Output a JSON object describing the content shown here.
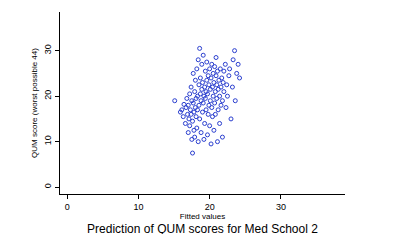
{
  "chart_data": {
    "type": "scatter",
    "title": "Prediction of QUM scores for Med School 2",
    "x_label": "Fitted values",
    "y_label": "QUM score (worst possible 44)",
    "color": "#2b3fcf",
    "marker": "circle-open",
    "grid": false,
    "xlim": [
      -1,
      39
    ],
    "ylim": [
      -1.5,
      38.5
    ],
    "xticks": [
      0,
      10,
      20,
      30
    ],
    "yticks": [
      0,
      10,
      20,
      30
    ],
    "x": [
      15.1,
      15.9,
      16.1,
      16.3,
      16.4,
      16.6,
      16.7,
      16.8,
      16.9,
      17.0,
      17.0,
      17.1,
      17.2,
      17.2,
      17.3,
      17.4,
      17.4,
      17.5,
      17.5,
      17.6,
      17.6,
      17.7,
      17.7,
      17.8,
      17.8,
      17.9,
      17.9,
      18.0,
      18.0,
      18.1,
      18.1,
      18.2,
      18.2,
      18.3,
      18.3,
      18.4,
      18.4,
      18.5,
      18.5,
      18.6,
      18.6,
      18.7,
      18.7,
      18.8,
      18.8,
      18.9,
      18.9,
      19.0,
      19.0,
      19.1,
      19.1,
      19.2,
      19.2,
      19.3,
      19.3,
      19.4,
      19.4,
      19.5,
      19.5,
      19.6,
      19.6,
      19.7,
      19.7,
      19.8,
      19.8,
      19.9,
      19.9,
      20.0,
      20.0,
      20.1,
      20.1,
      20.2,
      20.2,
      20.3,
      20.3,
      20.4,
      20.4,
      20.5,
      20.5,
      20.6,
      20.6,
      20.7,
      20.7,
      20.8,
      20.8,
      20.9,
      20.9,
      21.0,
      21.0,
      21.1,
      21.1,
      21.2,
      21.2,
      21.3,
      21.4,
      21.4,
      21.5,
      21.6,
      21.6,
      21.7,
      21.8,
      21.8,
      21.9,
      22.0,
      22.0,
      22.2,
      22.3,
      22.4,
      22.5,
      22.7,
      22.8,
      23.0,
      23.2,
      23.3,
      23.5,
      23.6,
      23.8,
      24.0,
      24.2
    ],
    "values": [
      19.0,
      16.5,
      17.0,
      15.5,
      18.2,
      14.0,
      17.5,
      19.5,
      16.0,
      12.0,
      18.0,
      15.0,
      20.5,
      13.5,
      17.0,
      22.0,
      16.0,
      10.5,
      19.0,
      7.5,
      14.5,
      18.5,
      25.0,
      12.5,
      16.5,
      21.0,
      11.0,
      17.5,
      23.5,
      15.5,
      19.5,
      26.0,
      13.0,
      20.0,
      17.0,
      28.0,
      10.0,
      22.5,
      18.0,
      30.5,
      15.0,
      24.0,
      20.5,
      12.0,
      19.0,
      21.5,
      27.0,
      16.5,
      23.0,
      18.5,
      29.0,
      20.0,
      10.5,
      22.0,
      14.0,
      25.5,
      19.5,
      17.0,
      21.0,
      27.5,
      23.5,
      11.5,
      20.5,
      24.5,
      16.0,
      22.5,
      18.0,
      26.0,
      13.5,
      21.5,
      19.0,
      24.0,
      9.5,
      27.0,
      17.5,
      22.0,
      15.5,
      25.0,
      20.0,
      23.0,
      12.5,
      26.5,
      18.5,
      21.0,
      16.0,
      24.5,
      28.5,
      19.5,
      22.5,
      10.0,
      25.5,
      17.0,
      21.5,
      23.5,
      14.0,
      20.0,
      26.0,
      18.0,
      22.0,
      24.0,
      19.0,
      11.0,
      23.0,
      25.5,
      21.0,
      27.0,
      17.5,
      22.5,
      20.0,
      24.5,
      26.0,
      15.0,
      22.0,
      28.0,
      30.0,
      19.0,
      25.0,
      27.0,
      24.0
    ]
  }
}
